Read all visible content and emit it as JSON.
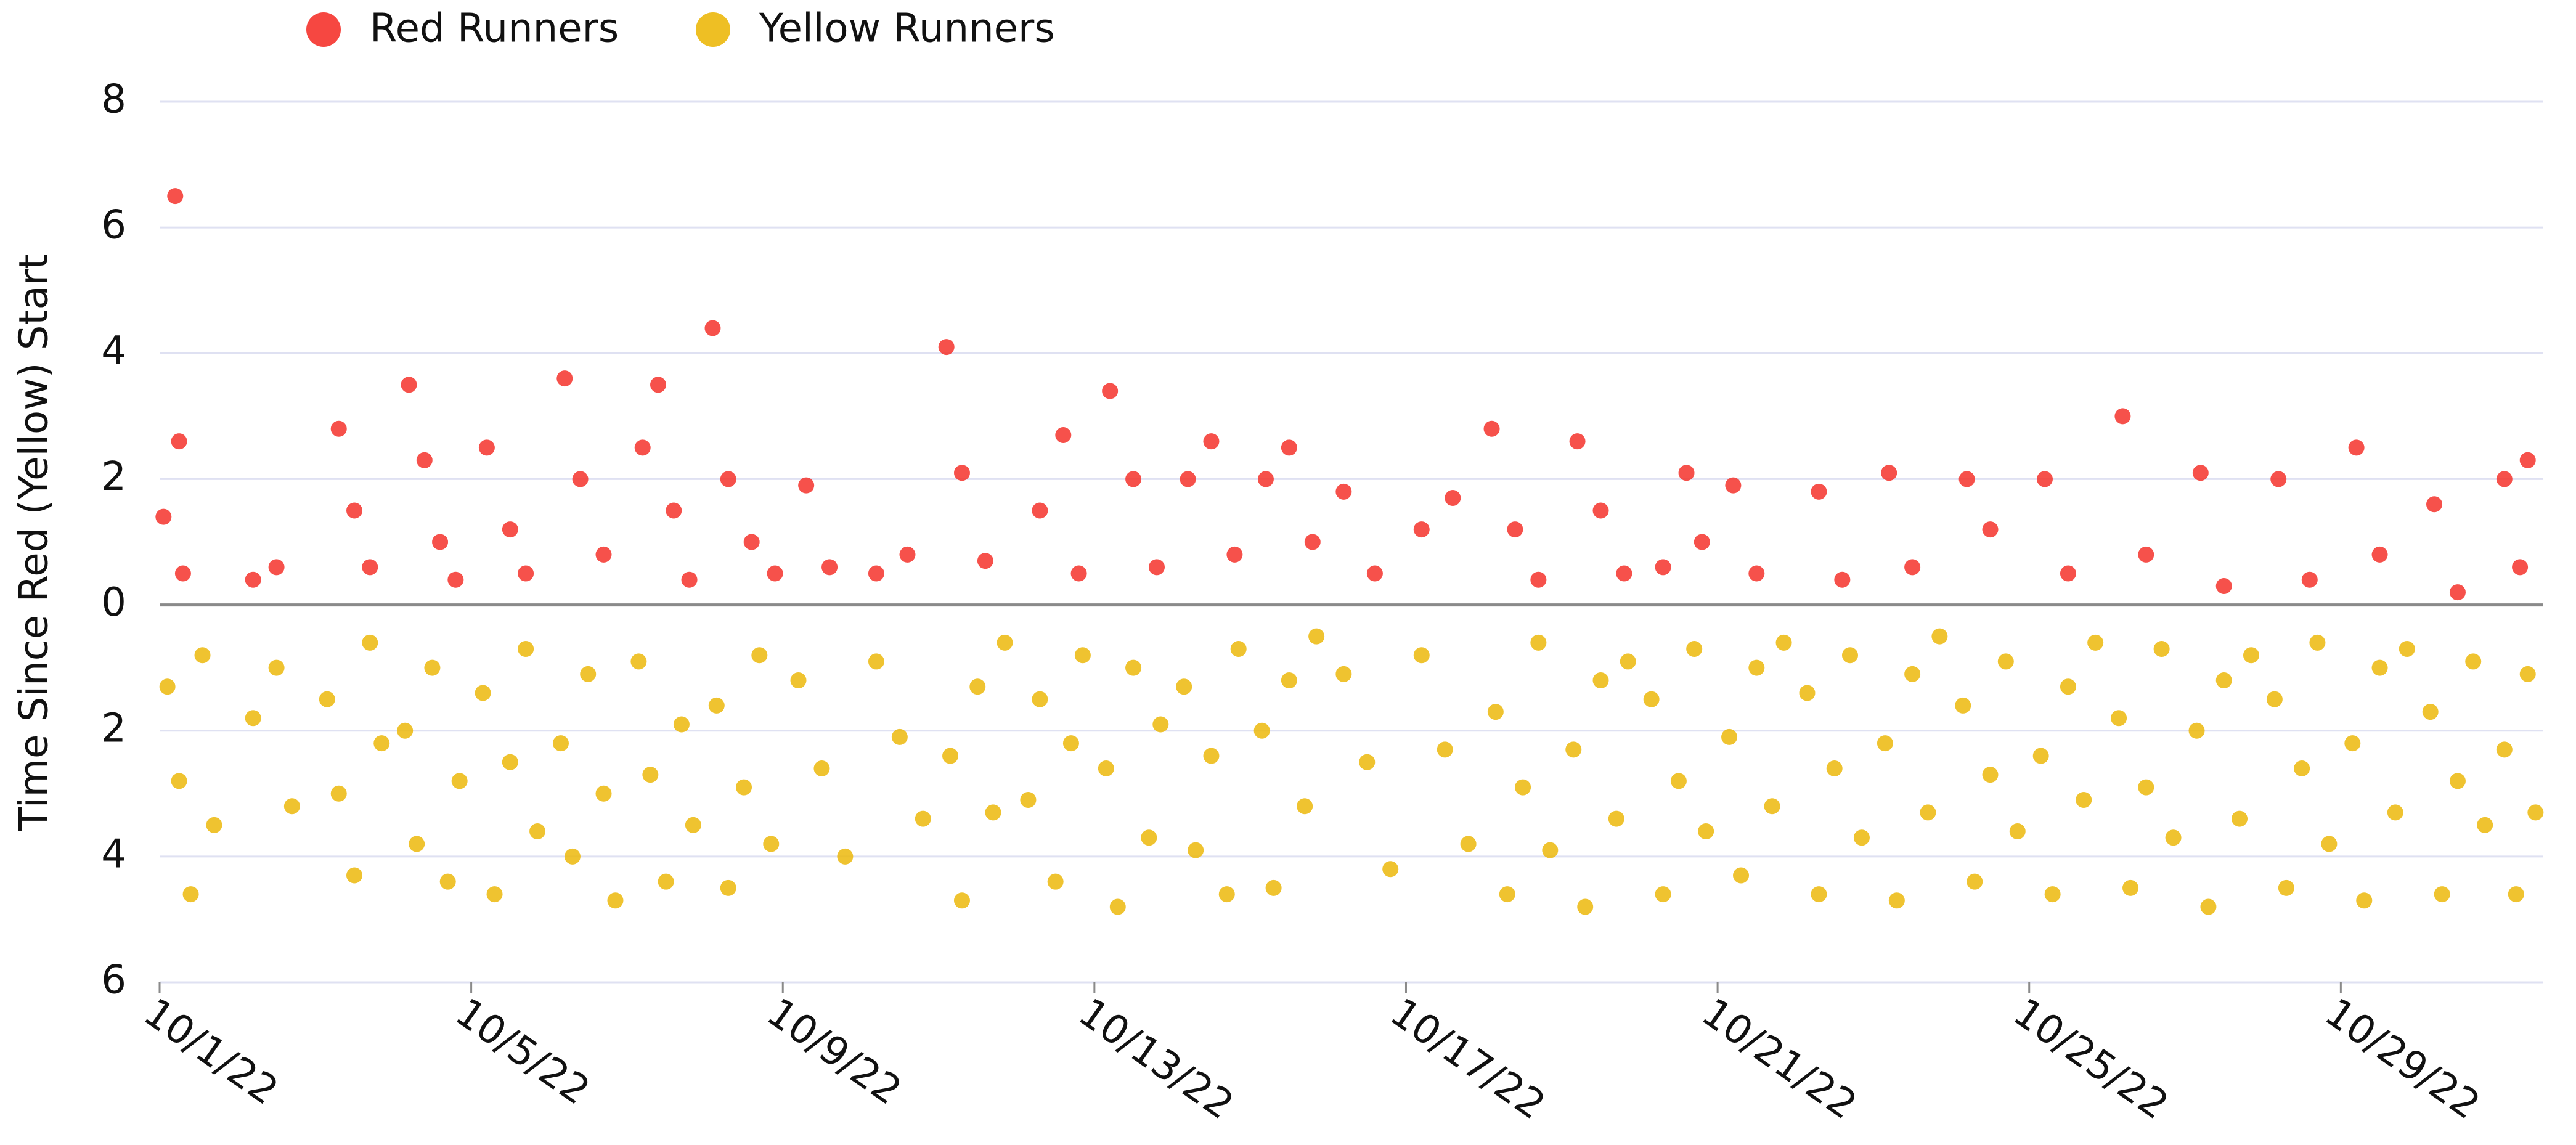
{
  "chart_data": {
    "type": "scatter",
    "y_label": "Time Since Red (Yellow) Start",
    "xlim": [
      1,
      31.6
    ],
    "xticks": [
      {
        "value": 1,
        "label": "10/1/22"
      },
      {
        "value": 5,
        "label": "10/5/22"
      },
      {
        "value": 9,
        "label": "10/9/22"
      },
      {
        "value": 13,
        "label": "10/13/22"
      },
      {
        "value": 17,
        "label": "10/17/22"
      },
      {
        "value": 21,
        "label": "10/21/22"
      },
      {
        "value": 25,
        "label": "10/25/22"
      },
      {
        "value": 29,
        "label": "10/29/22"
      }
    ],
    "ylim": [
      -6,
      8
    ],
    "yticks": [
      {
        "value": -6,
        "label": "6"
      },
      {
        "value": -4,
        "label": "4"
      },
      {
        "value": -2,
        "label": "2"
      },
      0,
      2,
      4,
      6,
      8
    ],
    "grid": true,
    "legend": "top-left",
    "series": [
      {
        "name": "Red Runners",
        "color": "#f5332c",
        "x": [
          1.05,
          1.2,
          1.25,
          1.3,
          2.2,
          2.5,
          3.3,
          3.5,
          3.7,
          4.2,
          4.4,
          4.6,
          4.8,
          5.2,
          5.5,
          5.7,
          6.2,
          6.4,
          6.7,
          7.2,
          7.4,
          7.6,
          7.8,
          8.1,
          8.3,
          8.6,
          8.9,
          9.3,
          9.6,
          10.2,
          10.6,
          11.1,
          11.3,
          11.6,
          12.3,
          12.6,
          12.8,
          13.2,
          13.5,
          13.8,
          14.2,
          14.5,
          14.8,
          15.2,
          15.5,
          15.8,
          16.2,
          16.6,
          17.2,
          17.6,
          18.1,
          18.4,
          18.7,
          19.2,
          19.5,
          19.8,
          20.3,
          20.6,
          20.8,
          21.2,
          21.5,
          22.3,
          22.6,
          23.2,
          23.5,
          24.2,
          24.5,
          25.2,
          25.5,
          26.2,
          26.5,
          27.2,
          27.5,
          28.2,
          28.6,
          29.2,
          29.5,
          30.2,
          30.5,
          31.1,
          31.4,
          31.3
        ],
        "values": [
          1.4,
          6.5,
          2.6,
          0.5,
          0.4,
          0.6,
          2.8,
          1.5,
          0.6,
          3.5,
          2.3,
          1.0,
          0.4,
          2.5,
          1.2,
          0.5,
          3.6,
          2.0,
          0.8,
          2.5,
          3.5,
          1.5,
          0.4,
          4.4,
          2.0,
          1.0,
          0.5,
          1.9,
          0.6,
          0.5,
          0.8,
          4.1,
          2.1,
          0.7,
          1.5,
          2.7,
          0.5,
          3.4,
          2.0,
          0.6,
          2.0,
          2.6,
          0.8,
          2.0,
          2.5,
          1.0,
          1.8,
          0.5,
          1.2,
          1.7,
          2.8,
          1.2,
          0.4,
          2.6,
          1.5,
          0.5,
          0.6,
          2.1,
          1.0,
          1.9,
          0.5,
          1.8,
          0.4,
          2.1,
          0.6,
          2.0,
          1.2,
          2.0,
          0.5,
          3.0,
          0.8,
          2.1,
          0.3,
          2.0,
          0.4,
          2.5,
          0.8,
          1.6,
          0.2,
          2.0,
          2.3,
          0.6
        ]
      },
      {
        "name": "Yellow Runners",
        "color": "#ecb80c",
        "x": [
          1.1,
          1.25,
          1.4,
          1.55,
          1.7,
          2.2,
          2.5,
          2.7,
          3.15,
          3.3,
          3.5,
          3.7,
          3.85,
          4.15,
          4.3,
          4.5,
          4.7,
          4.85,
          5.15,
          5.3,
          5.5,
          5.7,
          5.85,
          6.15,
          6.3,
          6.5,
          6.7,
          6.85,
          7.15,
          7.3,
          7.5,
          7.7,
          7.85,
          8.15,
          8.3,
          8.5,
          8.7,
          8.85,
          9.2,
          9.5,
          9.8,
          10.2,
          10.5,
          10.8,
          11.15,
          11.3,
          11.5,
          11.7,
          11.85,
          12.15,
          12.3,
          12.5,
          12.7,
          12.85,
          13.15,
          13.3,
          13.5,
          13.7,
          13.85,
          14.15,
          14.3,
          14.5,
          14.7,
          14.85,
          15.15,
          15.3,
          15.5,
          15.7,
          15.85,
          16.2,
          16.5,
          16.8,
          17.2,
          17.5,
          17.8,
          18.15,
          18.3,
          18.5,
          18.7,
          18.85,
          19.15,
          19.3,
          19.5,
          19.7,
          19.85,
          20.15,
          20.3,
          20.5,
          20.7,
          20.85,
          21.15,
          21.3,
          21.5,
          21.7,
          21.85,
          22.15,
          22.3,
          22.5,
          22.7,
          22.85,
          23.15,
          23.3,
          23.5,
          23.7,
          23.85,
          24.15,
          24.3,
          24.5,
          24.7,
          24.85,
          25.15,
          25.3,
          25.5,
          25.7,
          25.85,
          26.15,
          26.3,
          26.5,
          26.7,
          26.85,
          27.15,
          27.3,
          27.5,
          27.7,
          27.85,
          28.15,
          28.3,
          28.5,
          28.7,
          28.85,
          29.15,
          29.3,
          29.5,
          29.7,
          29.85,
          30.15,
          30.3,
          30.5,
          30.7,
          30.85,
          31.1,
          31.25,
          31.4,
          31.5
        ],
        "values": [
          -1.3,
          -2.8,
          -4.6,
          -0.8,
          -3.5,
          -1.8,
          -1.0,
          -3.2,
          -1.5,
          -3.0,
          -4.3,
          -0.6,
          -2.2,
          -2.0,
          -3.8,
          -1.0,
          -4.4,
          -2.8,
          -1.4,
          -4.6,
          -2.5,
          -0.7,
          -3.6,
          -2.2,
          -4.0,
          -1.1,
          -3.0,
          -4.7,
          -0.9,
          -2.7,
          -4.4,
          -1.9,
          -3.5,
          -1.6,
          -4.5,
          -2.9,
          -0.8,
          -3.8,
          -1.2,
          -2.6,
          -4.0,
          -0.9,
          -2.1,
          -3.4,
          -2.4,
          -4.7,
          -1.3,
          -3.3,
          -0.6,
          -3.1,
          -1.5,
          -4.4,
          -2.2,
          -0.8,
          -2.6,
          -4.8,
          -1.0,
          -3.7,
          -1.9,
          -1.3,
          -3.9,
          -2.4,
          -4.6,
          -0.7,
          -2.0,
          -4.5,
          -1.2,
          -3.2,
          -0.5,
          -1.1,
          -2.5,
          -4.2,
          -0.8,
          -2.3,
          -3.8,
          -1.7,
          -4.6,
          -2.9,
          -0.6,
          -3.9,
          -2.3,
          -4.8,
          -1.2,
          -3.4,
          -0.9,
          -1.5,
          -4.6,
          -2.8,
          -0.7,
          -3.6,
          -2.1,
          -4.3,
          -1.0,
          -3.2,
          -0.6,
          -1.4,
          -4.6,
          -2.6,
          -0.8,
          -3.7,
          -2.2,
          -4.7,
          -1.1,
          -3.3,
          -0.5,
          -1.6,
          -4.4,
          -2.7,
          -0.9,
          -3.6,
          -2.4,
          -4.6,
          -1.3,
          -3.1,
          -0.6,
          -1.8,
          -4.5,
          -2.9,
          -0.7,
          -3.7,
          -2.0,
          -4.8,
          -1.2,
          -3.4,
          -0.8,
          -1.5,
          -4.5,
          -2.6,
          -0.6,
          -3.8,
          -2.2,
          -4.7,
          -1.0,
          -3.3,
          -0.7,
          -1.7,
          -4.6,
          -2.8,
          -0.9,
          -3.5,
          -2.3,
          -4.6,
          -1.1,
          -3.3
        ]
      }
    ]
  }
}
